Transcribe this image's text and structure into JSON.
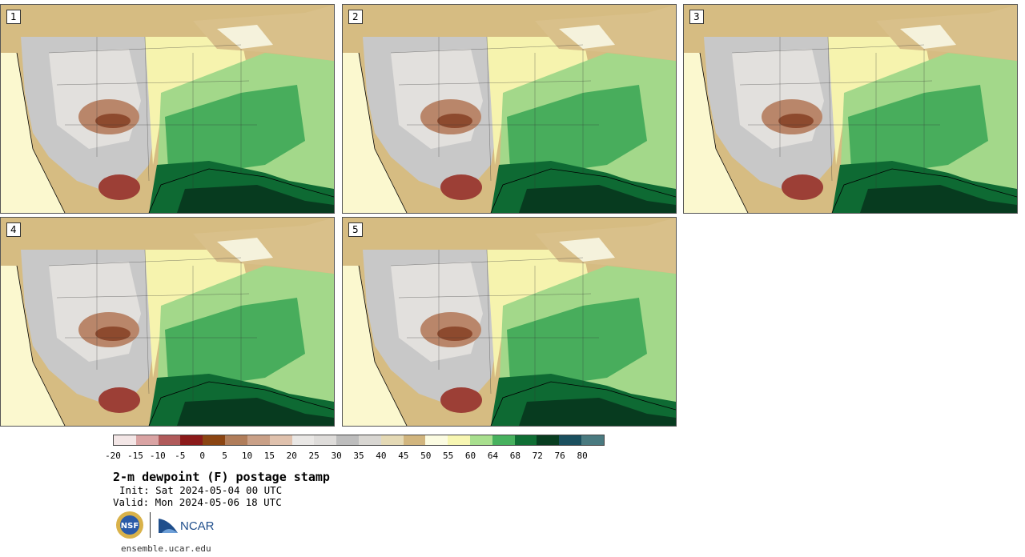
{
  "panels": [
    {
      "label": "1"
    },
    {
      "label": "2"
    },
    {
      "label": "3"
    },
    {
      "label": "4"
    },
    {
      "label": "5"
    }
  ],
  "colorbar": {
    "colors": [
      "#f3e6e6",
      "#d9a3a3",
      "#b05a5a",
      "#8b1a1a",
      "#8b4513",
      "#b07d5a",
      "#c9a087",
      "#dfc1ad",
      "#e9e7e5",
      "#dedcda",
      "#bdbdbd",
      "#d8d6d2",
      "#e4d9b5",
      "#d1b57e",
      "#fbfbe1",
      "#f7f6b2",
      "#a8df8e",
      "#47b15e",
      "#0f6e34",
      "#083d20",
      "#1a4f5e",
      "#4a7a80"
    ],
    "ticks": [
      "-20",
      "-15",
      "-10",
      "-5",
      "0",
      "5",
      "10",
      "15",
      "20",
      "25",
      "30",
      "35",
      "40",
      "45",
      "50",
      "55",
      "60",
      "64",
      "68",
      "72",
      "76",
      "80"
    ]
  },
  "title": "2-m dewpoint (F) postage stamp",
  "init": "Init: Sat 2024-05-04 00 UTC",
  "valid": "Valid: Mon 2024-05-06 18 UTC",
  "logos": {
    "nsf": "NSF",
    "ncar": "NCAR"
  },
  "site": "ensemble.ucar.edu"
}
